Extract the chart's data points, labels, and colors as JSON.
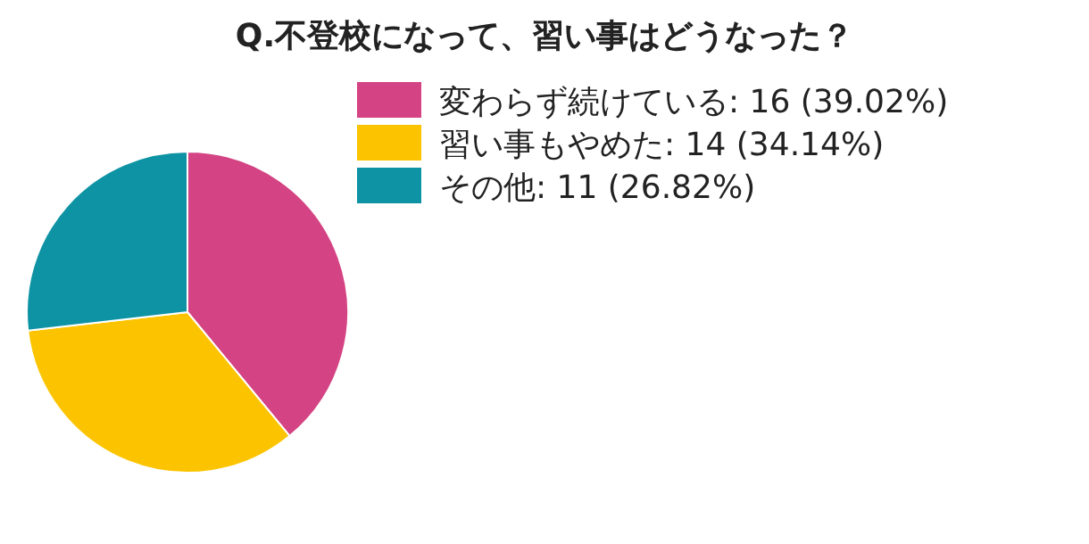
{
  "chart_data": {
    "type": "pie",
    "title": "Q.不登校になって、習い事はどうなった？",
    "categories": [
      "変わらず続けている: 16 (39.02%)",
      "習い事もやめた: 14 (34.14%)",
      "その他: 11 (26.82%)"
    ],
    "values": [
      16,
      14,
      11
    ],
    "colors": [
      "#d44383",
      "#fcc400",
      "#0e93a4"
    ],
    "legend": "right"
  }
}
